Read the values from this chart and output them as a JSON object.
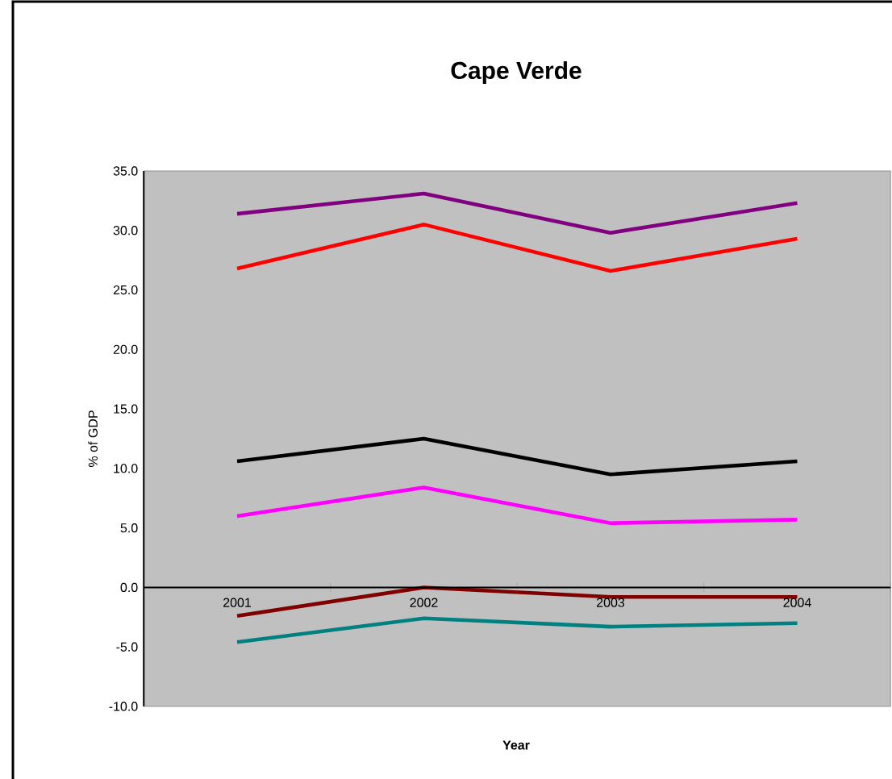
{
  "chart_data": {
    "type": "line",
    "title": "Cape Verde",
    "xlabel": "Year",
    "ylabel": "% of GDP",
    "categories": [
      "2001",
      "2002",
      "2003",
      "2004"
    ],
    "series": [
      {
        "color": "#800080",
        "values": [
          31.4,
          33.1,
          29.8,
          32.3
        ]
      },
      {
        "color": "#ff0000",
        "values": [
          26.8,
          30.5,
          26.6,
          29.3
        ]
      },
      {
        "color": "#000000",
        "values": [
          10.6,
          12.5,
          9.5,
          10.6
        ]
      },
      {
        "color": "#ff00ff",
        "values": [
          6.0,
          8.4,
          5.4,
          5.7
        ]
      },
      {
        "color": "#800000",
        "values": [
          -2.4,
          0.0,
          -0.8,
          -0.8
        ]
      },
      {
        "color": "#008080",
        "values": [
          -4.6,
          -2.6,
          -3.3,
          -3.0
        ]
      }
    ],
    "ylim": [
      -10,
      35
    ],
    "yticks": [
      {
        "value": -10,
        "label": "-10.0"
      },
      {
        "value": -5,
        "label": "-5.0"
      },
      {
        "value": 0,
        "label": "0.0"
      },
      {
        "value": 5,
        "label": "5.0"
      },
      {
        "value": 10,
        "label": "10.0"
      },
      {
        "value": 15,
        "label": "15.0"
      },
      {
        "value": 20,
        "label": "20.0"
      },
      {
        "value": 25,
        "label": "25.0"
      },
      {
        "value": 30,
        "label": "30.0"
      },
      {
        "value": 35,
        "label": "35.0"
      }
    ],
    "marker": "none",
    "line_style": "solid"
  }
}
